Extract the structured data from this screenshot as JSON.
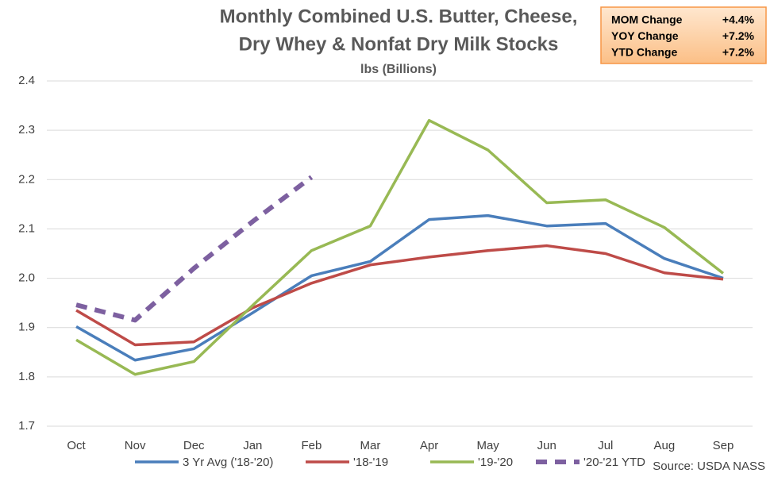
{
  "chart_data": {
    "type": "line",
    "title": [
      "Monthly Combined U.S. Butter, Cheese,",
      "Dry Whey & Nonfat Dry Milk Stocks"
    ],
    "subtitle": "lbs (Billions)",
    "source": "Source: USDA NASS",
    "summary": [
      {
        "label": "MOM Change",
        "value": "+4.4%"
      },
      {
        "label": "YOY Change",
        "value": "+7.2%"
      },
      {
        "label": "YTD Change",
        "value": "+7.2%"
      }
    ],
    "categories": [
      "Oct",
      "Nov",
      "Dec",
      "Jan",
      "Feb",
      "Mar",
      "Apr",
      "May",
      "Jun",
      "Jul",
      "Aug",
      "Sep"
    ],
    "series": [
      {
        "name": "3 Yr Avg ('18-'20)",
        "color": "#4a7ebb",
        "dashed": false,
        "values": [
          1.902,
          1.834,
          1.857,
          1.93,
          2.005,
          2.034,
          2.119,
          2.127,
          2.106,
          2.111,
          2.04,
          2.0
        ]
      },
      {
        "name": "'18-'19",
        "color": "#be4b48",
        "dashed": false,
        "values": [
          1.935,
          1.865,
          1.871,
          1.94,
          1.99,
          2.027,
          2.043,
          2.056,
          2.066,
          2.05,
          2.011,
          1.998
        ]
      },
      {
        "name": "'19-'20",
        "color": "#98b954",
        "dashed": false,
        "values": [
          1.875,
          1.805,
          1.831,
          1.945,
          2.056,
          2.106,
          2.32,
          2.26,
          2.153,
          2.159,
          2.103,
          2.01
        ]
      },
      {
        "name": "'20-'21 YTD",
        "color": "#7d60a0",
        "dashed": true,
        "values": [
          1.946,
          1.915,
          2.02,
          2.115,
          2.205,
          null,
          null,
          null,
          null,
          null,
          null,
          null
        ]
      }
    ],
    "ylim": [
      1.7,
      2.4
    ],
    "yticks": [
      1.7,
      1.8,
      1.9,
      {
        "value": 2,
        "label": "2.0"
      },
      2.1,
      2.2,
      2.3,
      2.4
    ],
    "grid": true
  }
}
